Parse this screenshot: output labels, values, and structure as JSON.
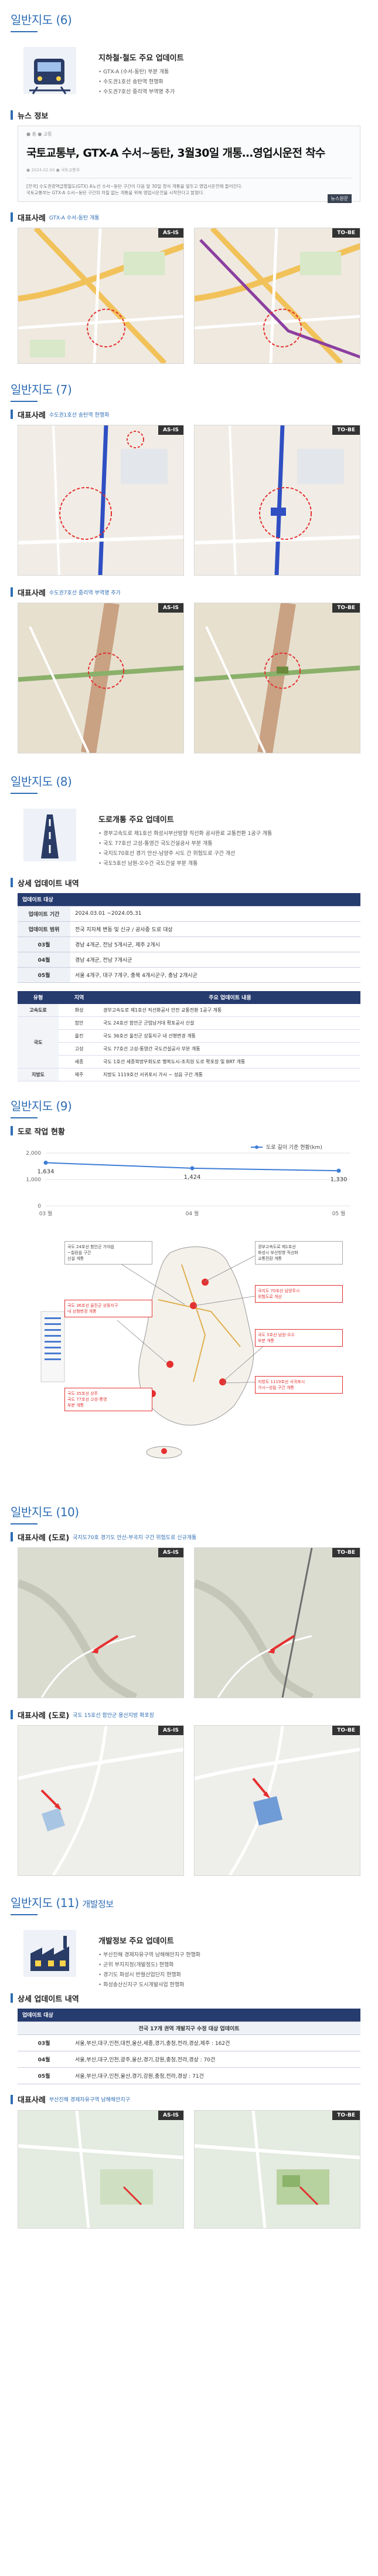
{
  "s6": {
    "title": "일반지도 (6)",
    "heading": "지하철·철도 주요 업데이트",
    "bullets": [
      "GTX-A (수서-동탄) 부분 개통",
      "수도권1호선 송탄역 현행화",
      "수도권7호선 중리역 부역명 추가"
    ],
    "news_label": "뉴스 정보",
    "news_meta": "● 홈   ● 교통",
    "news_headline": "국토교통부, GTX-A 수서~동탄, 3월30일 개통…영업시운전 착수",
    "news_meta2": "● 2024.02.00  ● 국토교통부",
    "news_body1": "[전국] 수도권광역급행철도(GTX) A노선 수서~동탄 구간이 다음 달 30일 정식 개통을 앞두고 영업시운전에 들어간다.",
    "news_body2": "국토교통부는 GTX-A 수서~동탄 구간의 차질 없는 개통을 위해 영업시운전을 시작한다고 밝혔다.",
    "news_src": "뉴스원문",
    "rep_title": "대표사례",
    "rep_sub": "GTX-A 수서-동탄 개통"
  },
  "s7": {
    "title": "일반지도 (7)",
    "rep1_title": "대표사례",
    "rep1_sub": "수도권1호선 송탄역 현행화",
    "rep2_title": "대표사례",
    "rep2_sub": "수도권7호선 중리역 부역명 추가"
  },
  "s8": {
    "title": "일반지도 (8)",
    "heading": "도로개통 주요 업데이트",
    "bullets": [
      "경부고속도로 제1호선 화성시부산방향 직선화 공사완료 교통전환 1공구 개통",
      "국도 77호선 고성-통영간 국도건설공사 부분 개통",
      "국지도70호선 경기 안산-남양주 시도 간 위험도로 구간 개선",
      "국도5호선 남원-오수간 국도건설 부분 개통"
    ],
    "detail_title": "상세 업데이트 내역",
    "table1": {
      "header": "업데이트 대상",
      "rows": [
        {
          "k": "업데이트 기간",
          "v": "2024.03.01 ~2024.05.31"
        },
        {
          "k": "업데이트 범위",
          "v": "전국 지자체 변동 및 신규 / 공사중 도로 대상"
        },
        {
          "k": "03월",
          "v": "경남 4개군, 전남 5개시군, 제주 2개시"
        },
        {
          "k": "04월",
          "v": "경남 4개군, 전남 7개시군"
        },
        {
          "k": "05월",
          "v": "서울 4개구, 대구 7개구, 충북 4개시군구, 충남 2개시군"
        }
      ]
    },
    "table2": {
      "headers": [
        "유형",
        "지역",
        "주요 업데이트 내용"
      ],
      "rows": [
        {
          "cat": "고속도로",
          "region": "화성",
          "text": "경부고속도로 제1호선 직선화공사 안전 교통전환 1공구 개통"
        },
        {
          "cat": "국도",
          "region": "함안",
          "text": "국도 24호선 함안군 군업남거대 확포공사 신설"
        },
        {
          "cat": "",
          "region": "울진",
          "text": "국도 36호선 울진군 상동지구 내 선형변경 개통"
        },
        {
          "cat": "",
          "region": "고성",
          "text": "국도 77호선 고성-통영간 국도건설공사 부분 개통"
        },
        {
          "cat": "",
          "region": "세종",
          "text": "국도 1호선 세종북방우회도로 행복도시-조치원 도로 확포장 및 BRT 개통"
        },
        {
          "cat": "지방도",
          "region": "제주",
          "text": "지방도 1119호선 서귀포시 가시 ~ 성읍 구간 개통"
        }
      ]
    }
  },
  "s9": {
    "title": "일반지도 (9)",
    "chart_title": "도로 작업 현황",
    "legend": "도로 길이 기준 현황(km)",
    "map_notes": [
      "국도 24호선 함안군 가야읍\n~칠원읍 구간\n신설 개통",
      "국도 36호선 울진군 상동지구\n내 선형변경 개통",
      "국도 35호선 상주\n국도 77호선 고성-통영\n부분 개통",
      "경부고속도로 제1호선\n화성시 부산방향 직선화\n교통전환 개통",
      "국지도 70호선 남양주시\n위험도로 개선",
      "국도 5호선 남원-오수\n부분 개통",
      "지방도 1119호선 서귀포시\n가시~성읍 구간 개통"
    ]
  },
  "chart_data": {
    "type": "line",
    "title": "도로 작업 현황",
    "categories": [
      "03 월",
      "04 월",
      "05 월"
    ],
    "series": [
      {
        "name": "도로 길이 기준 현황(km)",
        "values": [
          1634,
          1424,
          1330
        ]
      }
    ],
    "data_labels": [
      "1,634",
      "1,424",
      "1,330"
    ],
    "yticks": [
      "0",
      "1,000",
      "2,000"
    ],
    "ylim": [
      0,
      2000
    ],
    "color": "#3f7cd6"
  },
  "s10": {
    "title": "일반지도 (10)",
    "rep1_title": "대표사례 (도로)",
    "rep1_sub": "국지도70호 경기도 안산-부곡지 구간 위험도로 신규개통",
    "rep2_title": "대표사례 (도로)",
    "rep2_sub": "국도 15호선 함안군 용산지방 확포장"
  },
  "s11": {
    "title": "일반지도 (11)",
    "title_extra": "개발정보",
    "heading": "개발정보 주요 업데이트",
    "bullets": [
      "부산진해 경제자유구역 남해해안지구 현행화",
      "군위 부지지정(개발정도) 현행화",
      "경기도 화성시 반월산업단지 현행화",
      "화성송산신지구 도시개발사업 현행화"
    ],
    "detail_title": "상세 업데이트 내역",
    "table": {
      "header": "업데이트 대상",
      "subheader": "전국 17개 권역 개발지구 수정 대상 업데이트",
      "rows": [
        {
          "k": "03월",
          "v": "서울,부산,대구,인천,대전,울산,세종,경기,충청,전라,경상,제주 : 162건"
        },
        {
          "k": "04월",
          "v": "서울,부산,대구,인천,광주,울산,경기,강원,충청,전라,경상 : 70건"
        },
        {
          "k": "05월",
          "v": "서울,부산,대구,인천,울산,경기,강원,충청,전라,경상 : 71건"
        }
      ]
    },
    "rep_title": "대표사례",
    "rep_sub": "부산진해 경제자유구역 남해해안지구"
  },
  "tags": {
    "asis": "AS-IS",
    "tobe": "TO-BE"
  },
  "colors": {
    "accent": "#2e6db4",
    "navy": "#263b6e",
    "red": "#e53030"
  }
}
